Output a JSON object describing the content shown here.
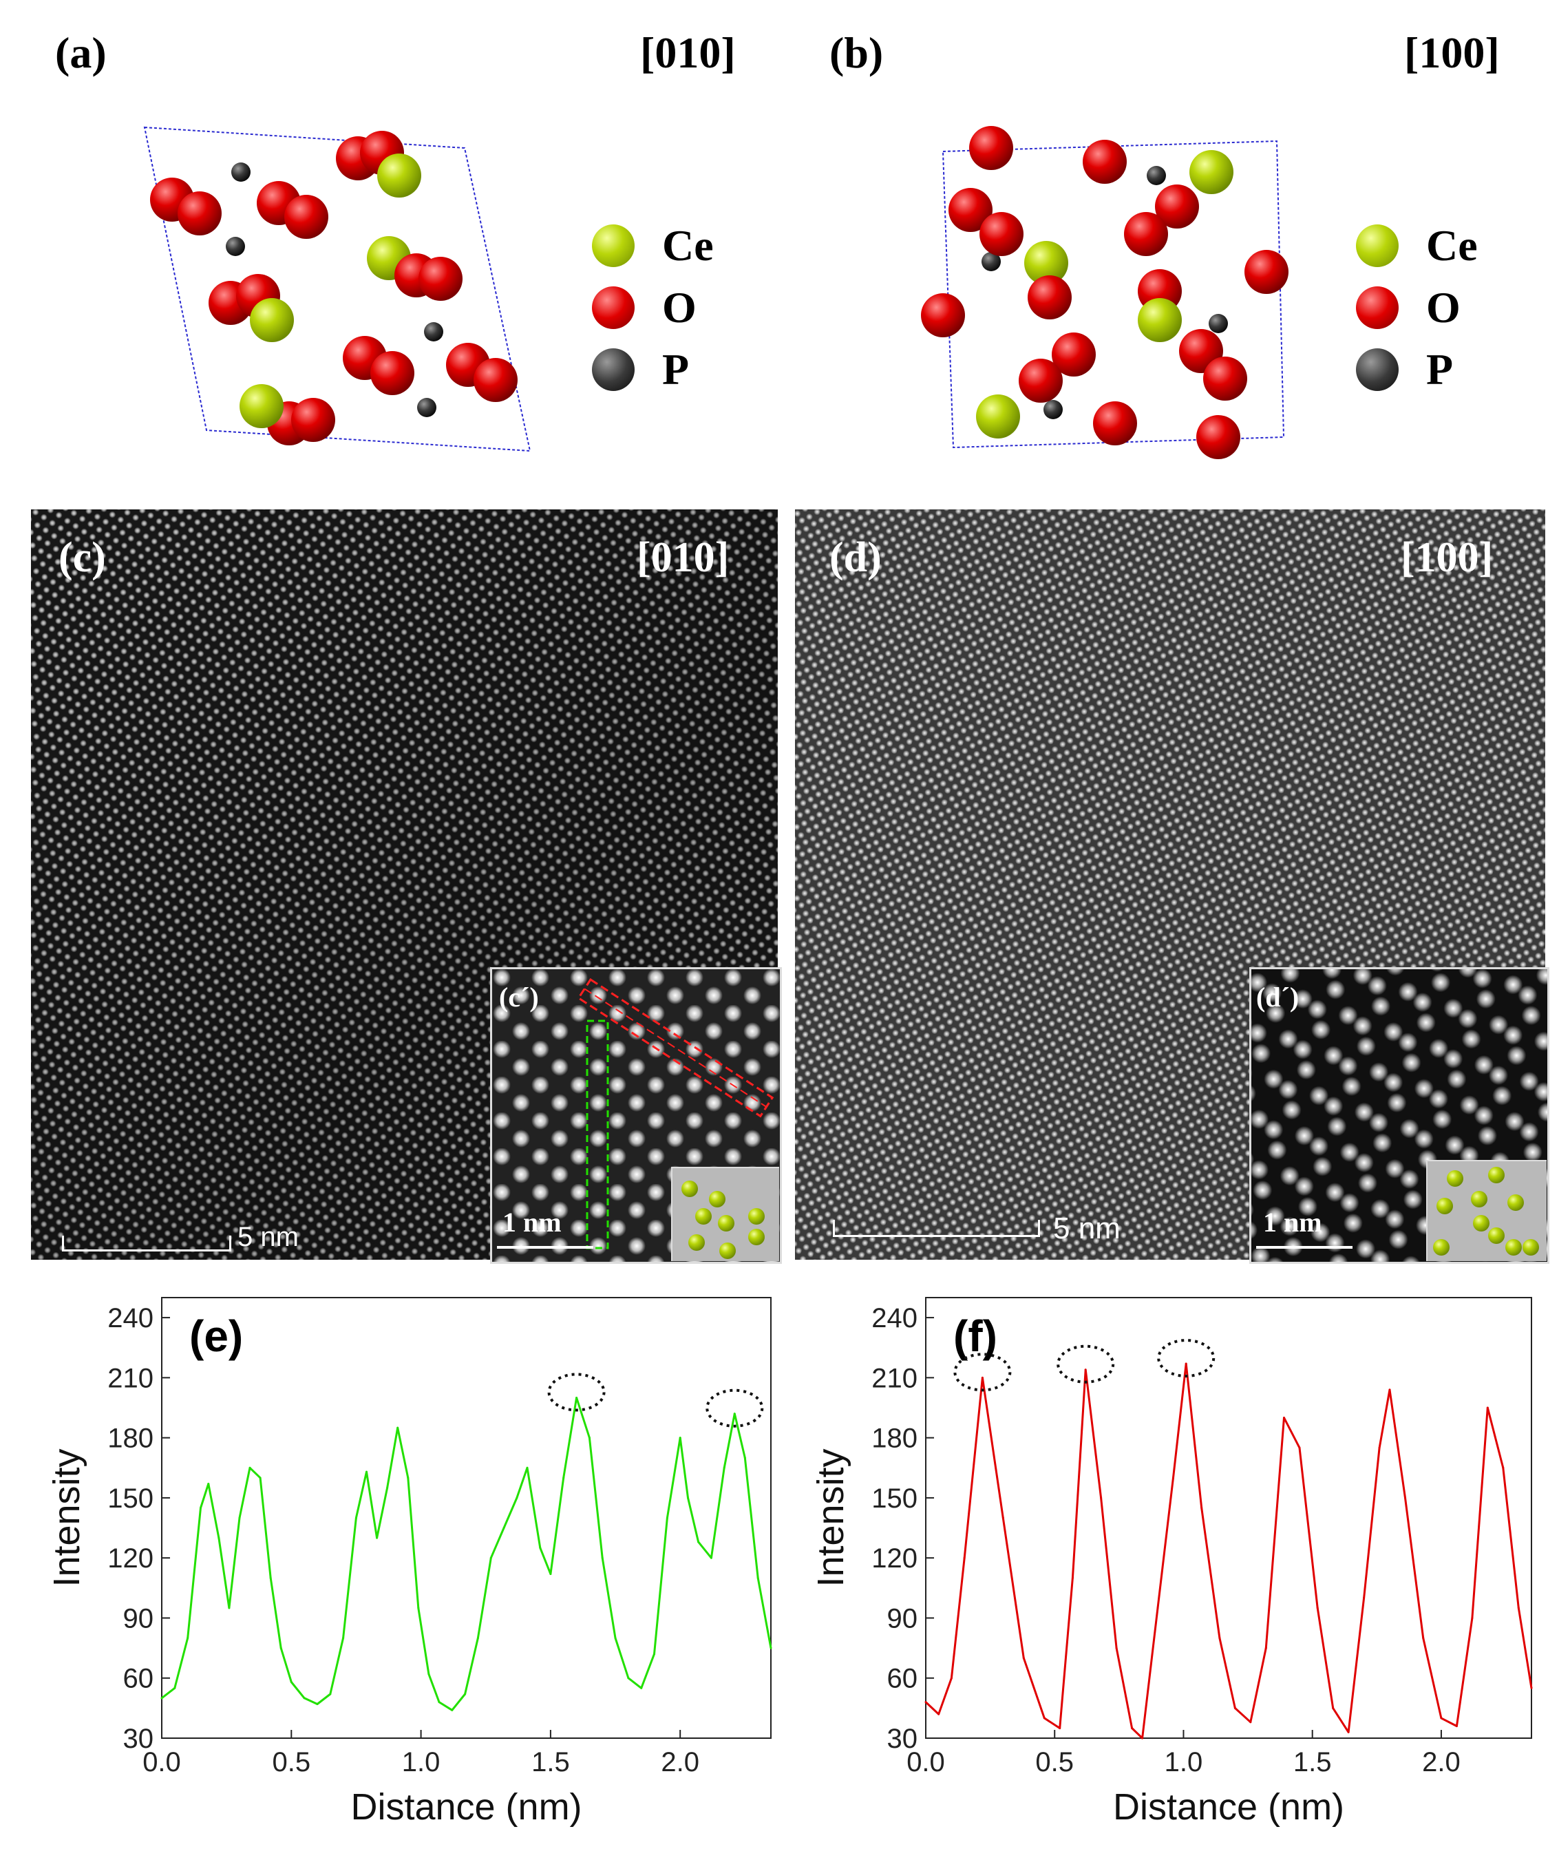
{
  "panels": {
    "a": {
      "label": "(a)",
      "direction": "[010]"
    },
    "b": {
      "label": "(b)",
      "direction": "[100]"
    },
    "c": {
      "label": "(c)",
      "direction": "[010]",
      "scale": "5 nm",
      "inset_label": "(c´)",
      "inset_scale": "1 nm"
    },
    "d": {
      "label": "(d)",
      "direction": "[100]",
      "scale": "5 nm",
      "inset_label": "(d´)",
      "inset_scale": "1 nm"
    }
  },
  "legend": {
    "ce": "Ce",
    "o": "O",
    "p": "P"
  },
  "colors": {
    "ce": "#b9d60a",
    "o": "#e00000",
    "p": "#3a3a3a",
    "line_e": "#22e000",
    "line_f": "#e00000",
    "cell": "#2a2ad0"
  },
  "chart_data": [
    {
      "type": "line",
      "panel_label": "(e)",
      "xlabel": "Distance (nm)",
      "ylabel": "Intensity",
      "xlim": [
        0.0,
        2.35
      ],
      "ylim": [
        30,
        250
      ],
      "xticks": [
        "0.0",
        "0.5",
        "1.0",
        "1.5",
        "2.0"
      ],
      "yticks": [
        "30",
        "60",
        "90",
        "120",
        "150",
        "180",
        "210",
        "240"
      ],
      "color": "#22e000",
      "x": [
        0.0,
        0.05,
        0.1,
        0.15,
        0.18,
        0.22,
        0.26,
        0.3,
        0.34,
        0.38,
        0.42,
        0.46,
        0.5,
        0.55,
        0.6,
        0.65,
        0.7,
        0.75,
        0.79,
        0.83,
        0.87,
        0.91,
        0.95,
        0.99,
        1.03,
        1.07,
        1.12,
        1.17,
        1.22,
        1.27,
        1.32,
        1.37,
        1.41,
        1.46,
        1.5,
        1.55,
        1.6,
        1.65,
        1.7,
        1.75,
        1.8,
        1.85,
        1.9,
        1.95,
        2.0,
        2.03,
        2.07,
        2.12,
        2.17,
        2.21,
        2.25,
        2.3,
        2.35
      ],
      "y": [
        50,
        55,
        80,
        145,
        157,
        130,
        95,
        140,
        165,
        160,
        110,
        75,
        58,
        50,
        47,
        52,
        80,
        140,
        163,
        130,
        155,
        185,
        160,
        95,
        62,
        48,
        44,
        52,
        80,
        120,
        135,
        150,
        165,
        125,
        112,
        160,
        200,
        180,
        120,
        80,
        60,
        55,
        72,
        140,
        180,
        150,
        128,
        120,
        165,
        192,
        170,
        110,
        75
      ]
    },
    {
      "type": "line",
      "panel_label": "(f)",
      "xlabel": "Distance (nm)",
      "ylabel": "Intensity",
      "xlim": [
        0.0,
        2.35
      ],
      "ylim": [
        30,
        250
      ],
      "xticks": [
        "0.0",
        "0.5",
        "1.0",
        "1.5",
        "2.0"
      ],
      "yticks": [
        "30",
        "60",
        "90",
        "120",
        "150",
        "180",
        "210",
        "240"
      ],
      "color": "#e00000",
      "x": [
        0.0,
        0.05,
        0.1,
        0.15,
        0.22,
        0.3,
        0.38,
        0.46,
        0.52,
        0.57,
        0.62,
        0.68,
        0.74,
        0.8,
        0.84,
        0.9,
        0.96,
        1.01,
        1.07,
        1.14,
        1.2,
        1.26,
        1.32,
        1.39,
        1.45,
        1.52,
        1.58,
        1.64,
        1.7,
        1.76,
        1.8,
        1.86,
        1.93,
        2.0,
        2.06,
        2.12,
        2.18,
        2.24,
        2.3,
        2.35
      ],
      "y": [
        48,
        42,
        60,
        120,
        210,
        140,
        70,
        40,
        35,
        110,
        214,
        150,
        75,
        35,
        30,
        95,
        160,
        217,
        145,
        80,
        45,
        38,
        75,
        190,
        175,
        95,
        45,
        33,
        100,
        175,
        204,
        150,
        80,
        40,
        36,
        90,
        195,
        165,
        95,
        55
      ]
    }
  ]
}
